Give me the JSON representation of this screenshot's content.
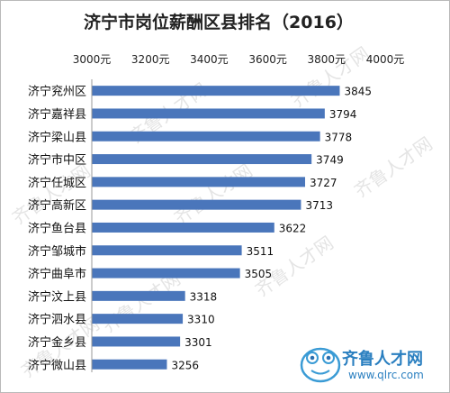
{
  "chart_data": {
    "type": "bar",
    "orientation": "horizontal",
    "title": "济宁市岗位薪酬区县排名（2016）",
    "categories": [
      "济宁兖州区",
      "济宁嘉祥县",
      "济宁梁山县",
      "济宁市中区",
      "济宁任城区",
      "济宁高新区",
      "济宁鱼台县",
      "济宁邹城市",
      "济宁曲阜市",
      "济宁汶上县",
      "济宁泗水县",
      "济宁金乡县",
      "济宁微山县"
    ],
    "values": [
      3845,
      3794,
      3778,
      3749,
      3727,
      3713,
      3622,
      3511,
      3505,
      3318,
      3310,
      3301,
      3256
    ],
    "xlim": [
      3000,
      4000
    ],
    "x_ticks": [
      "3000元",
      "3200元",
      "3400元",
      "3600元",
      "3800元",
      "4000元"
    ],
    "xaxis_position": "top",
    "grid": false,
    "legend": "none",
    "bar_color": "#4a76bb"
  },
  "watermark": {
    "text": "齐鲁人才网"
  },
  "logo": {
    "name": "齐鲁人才网",
    "url": "www.qlrc.com",
    "icon": "frog-icon"
  }
}
